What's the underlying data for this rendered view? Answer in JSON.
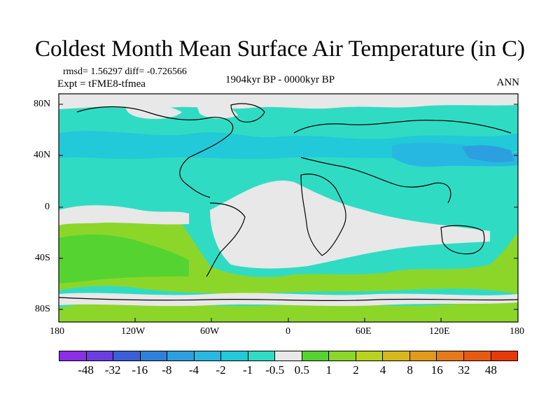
{
  "title": "Coldest Month Mean Surface Air Temperature (in C)",
  "meta": {
    "rmsd_line": "rmsd= 1.56297  diff= -0.726566",
    "expt_line": "Expt = tFME8-tfmea",
    "period": "1904kyr BP - 0000kyr BP",
    "season": "ANN"
  },
  "axes": {
    "lat_labels": [
      "80N",
      "40N",
      "0",
      "40S",
      "80S"
    ],
    "lon_labels": [
      "180",
      "120W",
      "60W",
      "0",
      "60E",
      "120E",
      "180"
    ]
  },
  "colorbar": {
    "labels": [
      "-48",
      "-32",
      "-16",
      "-8",
      "-4",
      "-2",
      "-1",
      "-0.5",
      "0.5",
      "1",
      "2",
      "4",
      "8",
      "16",
      "32",
      "48"
    ],
    "colors": [
      "#8c2ee6",
      "#6a3de0",
      "#3a5fd6",
      "#2f80dc",
      "#2b9fe0",
      "#27b8e2",
      "#22c9d8",
      "#2fdcc3",
      "#e8e8e8",
      "#55d431",
      "#8cd62a",
      "#b9d21f",
      "#d6b81c",
      "#e29a1c",
      "#e47a18",
      "#e65a12",
      "#e63a0a"
    ]
  },
  "map_colors": {
    "neutral": "#e8e8e8",
    "slightly_cooler": "#2fdcc3",
    "cooler": "#22c9d8",
    "much_cooler": "#27b8e2",
    "coldest": "#2b9fe0",
    "warmer": "#8cd62a",
    "slightly_warmer": "#55d431"
  }
}
